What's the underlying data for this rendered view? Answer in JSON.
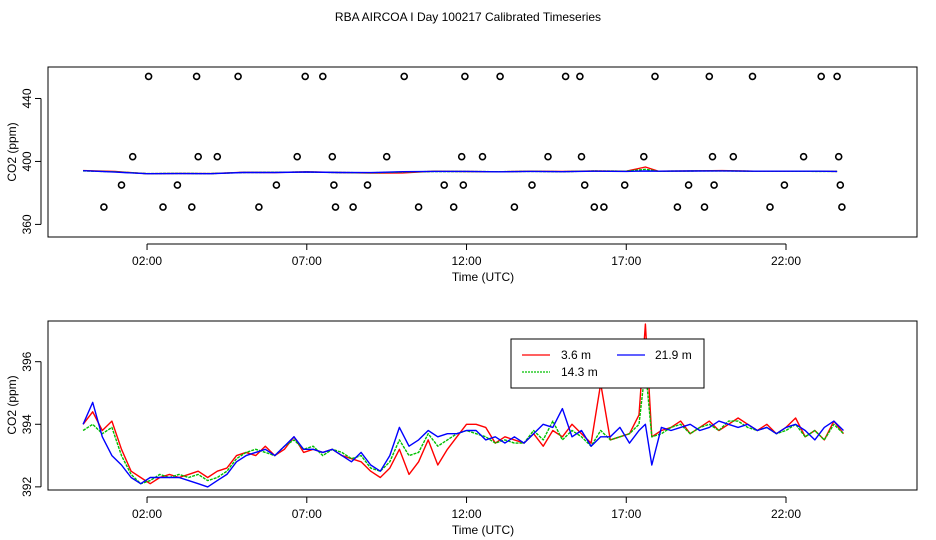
{
  "title": "RBA AIRCOA I  Day 100217  Calibrated Timeseries",
  "colors": {
    "red": "#ff0000",
    "green": "#00c000",
    "blue": "#0000ff",
    "black": "#000000"
  },
  "chart_data": [
    {
      "type": "scatter+line",
      "name": "top-panel",
      "xlabel": "Time (UTC)",
      "ylabel": "CO2 (ppm)",
      "xlim": [
        -1.1,
        26.1
      ],
      "ylim": [
        352,
        460
      ],
      "xticks": [
        2,
        7,
        12,
        17,
        22
      ],
      "xtick_labels": [
        "02:00",
        "07:00",
        "12:00",
        "17:00",
        "22:00"
      ],
      "yticks": [
        360,
        400,
        440
      ],
      "ytick_labels": [
        "360",
        "400",
        "440"
      ],
      "flag_points": {
        "x": [
          0.65,
          1.2,
          1.55,
          2.05,
          2.5,
          2.95,
          3.4,
          3.55,
          3.6,
          4.2,
          4.85,
          5.5,
          6.05,
          6.7,
          6.95,
          7.5,
          7.8,
          7.85,
          7.9,
          8.45,
          8.9,
          9.5,
          10.05,
          10.5,
          11.3,
          11.6,
          11.85,
          11.9,
          11.95,
          12.5,
          13.05,
          13.5,
          14.05,
          14.55,
          15.1,
          15.55,
          15.6,
          15.7,
          16.0,
          16.3,
          16.95,
          17.55,
          17.9,
          18.6,
          18.95,
          19.45,
          19.6,
          19.7,
          19.75,
          20.35,
          20.95,
          21.5,
          21.95,
          22.55,
          23.1,
          23.6,
          23.65,
          23.7,
          23.75
        ],
        "y": [
          371,
          385,
          403,
          454,
          371,
          385,
          371,
          454,
          403,
          403,
          454,
          371,
          385,
          403,
          454,
          454,
          403,
          385,
          371,
          371,
          385,
          403,
          454,
          371,
          385,
          371,
          403,
          385,
          454,
          403,
          454,
          371,
          385,
          403,
          454,
          454,
          403,
          385,
          371,
          371,
          385,
          403,
          454,
          371,
          385,
          371,
          454,
          403,
          385,
          403,
          454,
          371,
          385,
          403,
          454,
          454,
          403,
          385,
          371
        ]
      },
      "series": [
        {
          "name": "",
          "color": "red",
          "x": [
            0,
            1,
            2,
            3,
            4,
            5,
            6,
            7,
            8,
            9,
            10,
            11,
            12,
            13,
            14,
            15,
            16,
            17,
            17.6,
            18,
            19,
            20,
            21,
            22,
            23,
            23.6
          ],
          "y": [
            394.2,
            393.6,
            392.2,
            392.4,
            392.3,
            393.1,
            393.0,
            393.4,
            393.0,
            392.6,
            392.7,
            393.8,
            393.6,
            393.4,
            393.8,
            393.6,
            394.0,
            393.8,
            396.5,
            393.8,
            394.0,
            394.2,
            393.8,
            393.8,
            393.8,
            393.7
          ]
        },
        {
          "name": "",
          "color": "green",
          "x": [
            0,
            1,
            2,
            3,
            4,
            5,
            6,
            7,
            8,
            9,
            10,
            11,
            12,
            13,
            14,
            15,
            16,
            17,
            17.6,
            18,
            19,
            20,
            21,
            22,
            23,
            23.6
          ],
          "y": [
            394.0,
            393.4,
            392.3,
            392.4,
            392.3,
            393.0,
            393.1,
            393.3,
            393.0,
            392.8,
            393.3,
            393.6,
            393.6,
            393.5,
            393.7,
            393.5,
            393.9,
            393.8,
            395.0,
            393.8,
            393.9,
            394.0,
            393.8,
            393.8,
            393.7,
            393.7
          ]
        },
        {
          "name": "",
          "color": "blue",
          "x": [
            0,
            1,
            2,
            3,
            4,
            5,
            6,
            7,
            8,
            9,
            10,
            11,
            12,
            13,
            14,
            15,
            16,
            17,
            17.6,
            18,
            19,
            20,
            21,
            22,
            23,
            23.6
          ],
          "y": [
            394.1,
            393.2,
            392.2,
            392.3,
            392.2,
            393.0,
            393.0,
            393.3,
            393.0,
            392.9,
            393.5,
            393.7,
            393.7,
            393.4,
            393.7,
            393.5,
            393.8,
            393.7,
            393.9,
            393.8,
            393.9,
            394.0,
            393.8,
            393.8,
            393.8,
            393.7
          ]
        }
      ]
    },
    {
      "type": "line",
      "name": "bottom-panel",
      "xlabel": "Time (UTC)",
      "ylabel": "CO2 (ppm)",
      "xlim": [
        -1.1,
        26.1
      ],
      "ylim": [
        391.9,
        397.3
      ],
      "xticks": [
        2,
        7,
        12,
        17,
        22
      ],
      "xtick_labels": [
        "02:00",
        "07:00",
        "12:00",
        "17:00",
        "22:00"
      ],
      "yticks": [
        392,
        394,
        396
      ],
      "ytick_labels": [
        "392",
        "394",
        "396"
      ],
      "legend": {
        "placement": "top-center"
      },
      "series": [
        {
          "name": "3.6 m",
          "color": "red",
          "x": [
            0,
            0.3,
            0.6,
            0.9,
            1.2,
            1.5,
            1.8,
            2.1,
            2.4,
            2.7,
            3.0,
            3.3,
            3.6,
            3.9,
            4.2,
            4.5,
            4.8,
            5.1,
            5.4,
            5.7,
            6.0,
            6.3,
            6.6,
            6.9,
            7.2,
            7.5,
            7.8,
            8.1,
            8.4,
            8.7,
            9.0,
            9.3,
            9.6,
            9.9,
            10.2,
            10.5,
            10.8,
            11.1,
            11.4,
            11.7,
            12.0,
            12.3,
            12.6,
            12.9,
            13.2,
            13.5,
            13.8,
            14.1,
            14.4,
            14.7,
            15.0,
            15.3,
            15.6,
            15.9,
            16.2,
            16.5,
            16.8,
            17.1,
            17.4,
            17.6,
            17.8,
            18.1,
            18.4,
            18.7,
            19.0,
            19.3,
            19.6,
            19.9,
            20.2,
            20.5,
            20.8,
            21.1,
            21.4,
            21.7,
            22.0,
            22.3,
            22.6,
            22.9,
            23.2,
            23.5,
            23.8
          ],
          "y": [
            394.0,
            394.4,
            393.8,
            394.1,
            393.2,
            392.5,
            392.3,
            392.1,
            392.3,
            392.4,
            392.3,
            392.4,
            392.5,
            392.3,
            392.5,
            392.6,
            393.0,
            393.1,
            393.0,
            393.3,
            393.0,
            393.2,
            393.6,
            393.1,
            393.2,
            393.1,
            393.2,
            393.0,
            392.9,
            392.8,
            392.5,
            392.3,
            392.6,
            393.2,
            392.4,
            392.8,
            393.5,
            392.7,
            393.2,
            393.6,
            394.0,
            394.0,
            393.9,
            393.4,
            393.6,
            393.5,
            393.4,
            393.7,
            393.3,
            393.8,
            393.6,
            394.0,
            393.7,
            393.4,
            395.3,
            393.5,
            393.6,
            393.7,
            394.3,
            397.2,
            393.6,
            393.8,
            393.9,
            394.1,
            393.7,
            393.9,
            394.1,
            393.8,
            394.0,
            394.2,
            394.0,
            393.8,
            394.0,
            393.7,
            393.9,
            394.2,
            393.6,
            393.8,
            393.5,
            394.1,
            393.7
          ]
        },
        {
          "name": "14.3 m",
          "color": "green",
          "x": [
            0,
            0.3,
            0.6,
            0.9,
            1.2,
            1.5,
            1.8,
            2.1,
            2.4,
            2.7,
            3.0,
            3.3,
            3.6,
            3.9,
            4.2,
            4.5,
            4.8,
            5.1,
            5.4,
            5.7,
            6.0,
            6.3,
            6.6,
            6.9,
            7.2,
            7.5,
            7.8,
            8.1,
            8.4,
            8.7,
            9.0,
            9.3,
            9.6,
            9.9,
            10.2,
            10.5,
            10.8,
            11.1,
            11.4,
            11.7,
            12.0,
            12.3,
            12.6,
            12.9,
            13.2,
            13.5,
            13.8,
            14.1,
            14.4,
            14.7,
            15.0,
            15.3,
            15.6,
            15.9,
            16.2,
            16.5,
            16.8,
            17.1,
            17.4,
            17.6,
            17.8,
            18.1,
            18.4,
            18.7,
            19.0,
            19.3,
            19.6,
            19.9,
            20.2,
            20.5,
            20.8,
            21.1,
            21.4,
            21.7,
            22.0,
            22.3,
            22.6,
            22.9,
            23.2,
            23.5,
            23.8
          ],
          "y": [
            393.8,
            394.0,
            393.7,
            393.9,
            393.0,
            392.4,
            392.1,
            392.2,
            392.4,
            392.3,
            392.4,
            392.3,
            392.4,
            392.2,
            392.3,
            392.5,
            392.9,
            393.1,
            393.2,
            393.1,
            393.0,
            393.3,
            393.5,
            393.2,
            393.3,
            393.0,
            393.2,
            393.1,
            392.9,
            393.0,
            392.6,
            392.5,
            392.8,
            393.5,
            393.0,
            393.1,
            393.7,
            393.3,
            393.5,
            393.7,
            393.8,
            393.7,
            393.6,
            393.4,
            393.5,
            393.4,
            393.4,
            393.8,
            393.5,
            394.1,
            393.5,
            393.8,
            393.6,
            393.3,
            393.8,
            393.5,
            393.6,
            393.7,
            394.0,
            395.8,
            393.6,
            393.7,
            393.9,
            394.0,
            393.7,
            393.9,
            394.0,
            393.8,
            394.1,
            394.1,
            393.9,
            393.8,
            393.9,
            393.7,
            393.8,
            394.0,
            393.6,
            393.8,
            393.5,
            394.0,
            393.7
          ]
        },
        {
          "name": "21.9 m",
          "color": "blue",
          "x": [
            0,
            0.3,
            0.6,
            0.9,
            1.2,
            1.5,
            1.8,
            2.1,
            2.4,
            2.7,
            3.0,
            3.3,
            3.6,
            3.9,
            4.2,
            4.5,
            4.8,
            5.1,
            5.4,
            5.7,
            6.0,
            6.3,
            6.6,
            6.9,
            7.2,
            7.5,
            7.8,
            8.1,
            8.4,
            8.7,
            9.0,
            9.3,
            9.6,
            9.9,
            10.2,
            10.5,
            10.8,
            11.1,
            11.4,
            11.7,
            12.0,
            12.3,
            12.6,
            12.9,
            13.2,
            13.5,
            13.8,
            14.1,
            14.4,
            14.7,
            15.0,
            15.3,
            15.6,
            15.9,
            16.2,
            16.5,
            16.8,
            17.1,
            17.4,
            17.6,
            17.8,
            18.1,
            18.4,
            18.7,
            19.0,
            19.3,
            19.6,
            19.9,
            20.2,
            20.5,
            20.8,
            21.1,
            21.4,
            21.7,
            22.0,
            22.3,
            22.6,
            22.9,
            23.2,
            23.5,
            23.8
          ],
          "y": [
            394.0,
            394.7,
            393.6,
            393.0,
            392.7,
            392.3,
            392.1,
            392.3,
            392.3,
            392.3,
            392.3,
            392.2,
            392.1,
            392.0,
            392.2,
            392.4,
            392.8,
            393.0,
            393.1,
            393.2,
            393.0,
            393.3,
            393.6,
            393.2,
            393.2,
            393.1,
            393.2,
            393.0,
            392.8,
            393.1,
            392.7,
            392.5,
            393.0,
            393.9,
            393.3,
            393.5,
            393.8,
            393.6,
            393.7,
            393.7,
            393.8,
            393.8,
            393.5,
            393.6,
            393.4,
            393.6,
            393.4,
            393.7,
            394.0,
            393.9,
            394.5,
            393.6,
            393.8,
            393.3,
            393.6,
            393.6,
            393.9,
            393.4,
            393.8,
            394.0,
            392.7,
            393.9,
            393.8,
            393.9,
            394.0,
            393.8,
            393.9,
            394.1,
            394.0,
            393.9,
            394.0,
            393.8,
            393.9,
            393.7,
            393.9,
            394.0,
            393.8,
            393.5,
            393.9,
            394.1,
            393.8
          ]
        }
      ]
    }
  ]
}
